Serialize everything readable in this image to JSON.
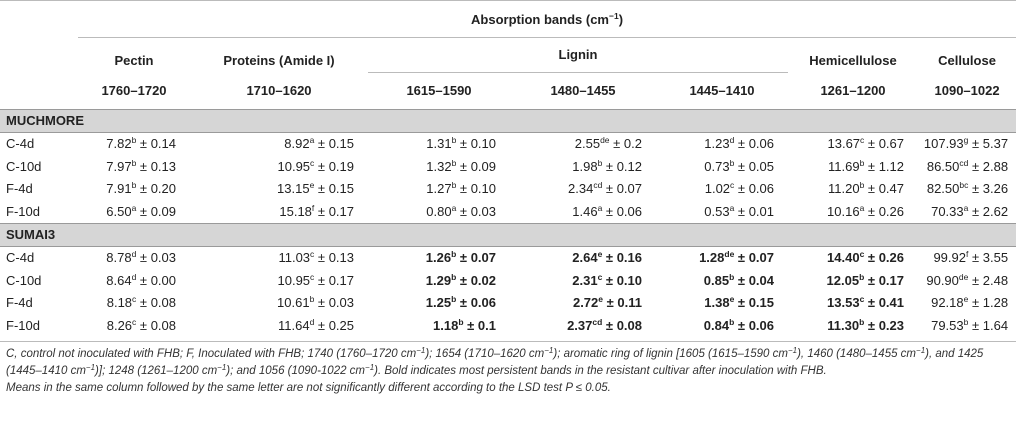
{
  "header": {
    "title_main": "Absorption bands (cm",
    "title_exp": "−1",
    "title_close": ")",
    "components": {
      "pectin": "Pectin",
      "proteins": "Proteins (Amide I)",
      "lignin": "Lignin",
      "hemicellulose": "Hemicellulose",
      "cellulose": "Cellulose"
    },
    "ranges": [
      "1760–1720",
      "1710–1620",
      "1615–1590",
      "1480–1455",
      "1445–1410",
      "1261–1200",
      "1090–1022"
    ]
  },
  "sections": [
    {
      "name": "MUCHMORE",
      "rows": [
        {
          "label": "C-4d",
          "cells": [
            {
              "v": "7.82",
              "s": "b",
              "e": "0.14"
            },
            {
              "v": "8.92",
              "s": "a",
              "e": "0.15"
            },
            {
              "v": "1.31",
              "s": "b",
              "e": "0.10"
            },
            {
              "v": "2.55",
              "s": "de",
              "e": "0.2"
            },
            {
              "v": "1.23",
              "s": "d",
              "e": "0.06"
            },
            {
              "v": "13.67",
              "s": "c",
              "e": "0.67"
            },
            {
              "v": "107.93",
              "s": "g",
              "e": "5.37"
            }
          ]
        },
        {
          "label": "C-10d",
          "cells": [
            {
              "v": "7.97",
              "s": "b",
              "e": "0.13"
            },
            {
              "v": "10.95",
              "s": "c",
              "e": "0.19"
            },
            {
              "v": "1.32",
              "s": "b",
              "e": "0.09"
            },
            {
              "v": "1.98",
              "s": "b",
              "e": "0.12"
            },
            {
              "v": "0.73",
              "s": "b",
              "e": "0.05"
            },
            {
              "v": "11.69",
              "s": "b",
              "e": "1.12"
            },
            {
              "v": "86.50",
              "s": "cd",
              "e": "2.88"
            }
          ]
        },
        {
          "label": "F-4d",
          "cells": [
            {
              "v": "7.91",
              "s": "b",
              "e": "0.20"
            },
            {
              "v": "13.15",
              "s": "e",
              "e": "0.15"
            },
            {
              "v": "1.27",
              "s": "b",
              "e": "0.10"
            },
            {
              "v": "2.34",
              "s": "cd",
              "e": "0.07"
            },
            {
              "v": "1.02",
              "s": "c",
              "e": "0.06"
            },
            {
              "v": "11.20",
              "s": "b",
              "e": "0.47"
            },
            {
              "v": "82.50",
              "s": "bc",
              "e": "3.26"
            }
          ]
        },
        {
          "label": "F-10d",
          "cells": [
            {
              "v": "6.50",
              "s": "a",
              "e": "0.09"
            },
            {
              "v": "15.18",
              "s": "f",
              "e": "0.17"
            },
            {
              "v": "0.80",
              "s": "a",
              "e": "0.03"
            },
            {
              "v": "1.46",
              "s": "a",
              "e": "0.06"
            },
            {
              "v": "0.53",
              "s": "a",
              "e": "0.01"
            },
            {
              "v": "10.16",
              "s": "a",
              "e": "0.26"
            },
            {
              "v": "70.33",
              "s": "a",
              "e": "2.62"
            }
          ]
        }
      ]
    },
    {
      "name": "SUMAI3",
      "rows": [
        {
          "label": "C-4d",
          "cells": [
            {
              "v": "8.78",
              "s": "d",
              "e": "0.03"
            },
            {
              "v": "11.03",
              "s": "c",
              "e": "0.13"
            },
            {
              "v": "1.26",
              "s": "b",
              "e": "0.07",
              "bold": true
            },
            {
              "v": "2.64",
              "s": "e",
              "e": "0.16",
              "bold": true
            },
            {
              "v": "1.28",
              "s": "de",
              "e": "0.07",
              "bold": true
            },
            {
              "v": "14.40",
              "s": "c",
              "e": "0.26",
              "bold": true
            },
            {
              "v": "99.92",
              "s": "f",
              "e": "3.55"
            }
          ]
        },
        {
          "label": "C-10d",
          "cells": [
            {
              "v": "8.64",
              "s": "d",
              "e": "0.00"
            },
            {
              "v": "10.95",
              "s": "c",
              "e": "0.17"
            },
            {
              "v": "1.29",
              "s": "b",
              "e": "0.02",
              "bold": true
            },
            {
              "v": "2.31",
              "s": "c",
              "e": "0.10",
              "bold": true
            },
            {
              "v": "0.85",
              "s": "b",
              "e": "0.04",
              "bold": true
            },
            {
              "v": "12.05",
              "s": "b",
              "e": "0.17",
              "bold": true
            },
            {
              "v": "90.90",
              "s": "de",
              "e": "2.48"
            }
          ]
        },
        {
          "label": "F-4d",
          "cells": [
            {
              "v": "8.18",
              "s": "c",
              "e": "0.08"
            },
            {
              "v": "10.61",
              "s": "b",
              "e": "0.03"
            },
            {
              "v": "1.25",
              "s": "b",
              "e": "0.06",
              "bold": true
            },
            {
              "v": "2.72",
              "s": "e",
              "e": "0.11",
              "bold": true
            },
            {
              "v": "1.38",
              "s": "e",
              "e": "0.15",
              "bold": true
            },
            {
              "v": "13.53",
              "s": "c",
              "e": "0.41",
              "bold": true
            },
            {
              "v": "92.18",
              "s": "e",
              "e": "1.28"
            }
          ]
        },
        {
          "label": "F-10d",
          "cells": [
            {
              "v": "8.26",
              "s": "c",
              "e": "0.08"
            },
            {
              "v": "11.64",
              "s": "d",
              "e": "0.25"
            },
            {
              "v": "1.18",
              "s": "b",
              "e": "0.1",
              "bold": true
            },
            {
              "v": "2.37",
              "s": "cd",
              "e": "0.08",
              "bold": true
            },
            {
              "v": "0.84",
              "s": "b",
              "e": "0.06",
              "bold": true
            },
            {
              "v": "11.30",
              "s": "b",
              "e": "0.23",
              "bold": true
            },
            {
              "v": "79.53",
              "s": "b",
              "e": "1.64"
            }
          ]
        }
      ]
    }
  ],
  "pm_symbol": "±",
  "footnote": {
    "p1": "C, control not inoculated with FHB; F, Inoculated with FHB; 1740 (1760–1720 cm",
    "e1": "−1",
    "p2": "); 1654 (1710–1620 cm",
    "e2": "−1",
    "p3": "); aromatic ring of lignin [1605 (1615–1590 cm",
    "e3": "−1",
    "p4": "), 1460 (1480–1455 cm",
    "e4": "−1",
    "p5": "), and 1425 (1445–1410 cm",
    "e5": "−1",
    "p6": ")]; 1248 (1261–1200 cm",
    "e6": "−1",
    "p7": "); and 1056 (1090-1022 cm",
    "e7": "−1",
    "p8": "). Bold indicates most persistent bands in the resistant cultivar after inoculation with FHB.",
    "line2": "Means in the same column followed by the same letter are not significantly different according to the LSD test P ≤ 0.05."
  }
}
